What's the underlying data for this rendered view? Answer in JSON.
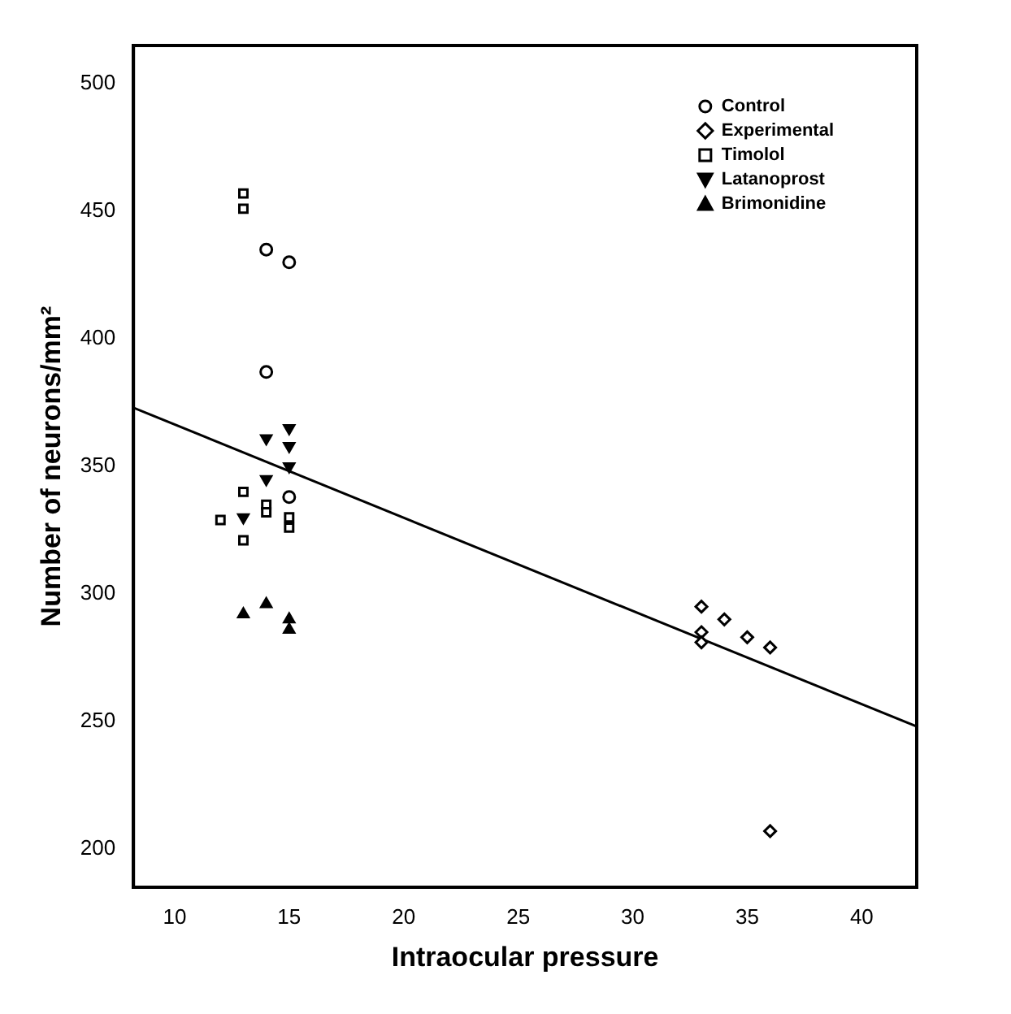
{
  "chart_data": {
    "type": "scatter",
    "xlabel": "Intraocular pressure",
    "ylabel": "Number of neurons/mm²",
    "xlim": [
      8.2,
      42.4
    ],
    "ylim": [
      185,
      515
    ],
    "xticks": [
      10,
      15,
      20,
      25,
      30,
      35,
      40
    ],
    "yticks": [
      200,
      250,
      300,
      350,
      400,
      450,
      500
    ],
    "grid": false,
    "legend": "top right",
    "series": [
      {
        "name": "Control",
        "color": "#000000",
        "marker": "circle",
        "x": [
          14,
          15,
          14,
          15
        ],
        "values": [
          435,
          430,
          387,
          338
        ]
      },
      {
        "name": "Experimental",
        "color": "#000000",
        "marker": "diamond",
        "x": [
          33,
          34,
          35,
          36,
          33,
          33,
          36
        ],
        "values": [
          295,
          290,
          283,
          279,
          285,
          281,
          207
        ]
      },
      {
        "name": "Timolol",
        "color": "#000000",
        "marker": "square",
        "x": [
          12,
          13,
          13,
          14,
          14,
          15,
          15,
          13,
          13
        ],
        "values": [
          329,
          340,
          321,
          335,
          332,
          330,
          326,
          457,
          451
        ]
      },
      {
        "name": "Latanoprost",
        "color": "#000000",
        "marker": "triangle-down",
        "x": [
          14,
          15,
          15,
          14,
          15,
          13
        ],
        "values": [
          361,
          365,
          358,
          345,
          350,
          330
        ]
      },
      {
        "name": "Brimonidine",
        "color": "#000000",
        "marker": "triangle",
        "x": [
          13,
          14,
          15,
          15
        ],
        "values": [
          292,
          296,
          290,
          286
        ]
      },
      {
        "type": "line",
        "color": "#000000",
        "marker": "none",
        "x": [
          8.2,
          42.4
        ],
        "values": [
          373,
          248
        ]
      }
    ]
  }
}
